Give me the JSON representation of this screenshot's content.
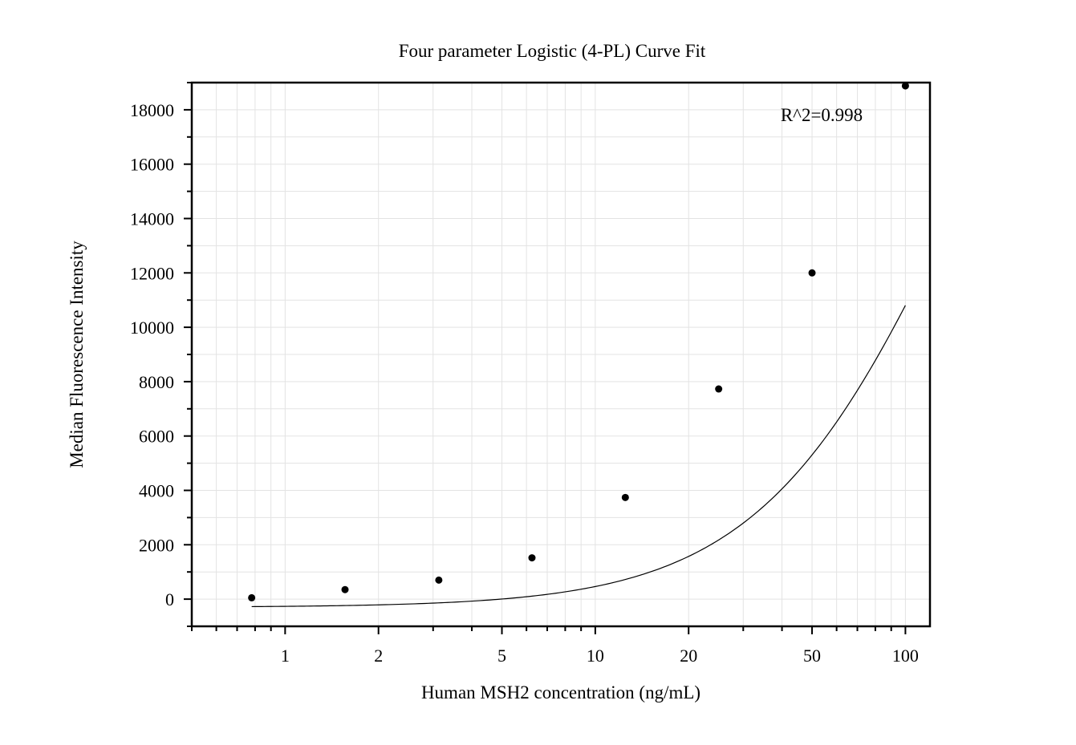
{
  "chart_data": {
    "type": "scatter",
    "title": "Four parameter Logistic (4-PL) Curve Fit",
    "xlabel": "Human MSH2 concentration (ng/mL)",
    "ylabel": "Median Fluorescence Intensity",
    "x_scale": "log",
    "xlim": [
      0.5,
      120
    ],
    "ylim": [
      -1000,
      19000
    ],
    "grid": true,
    "x_ticks": [
      1,
      2,
      5,
      10,
      20,
      50,
      100
    ],
    "x_tick_labels": [
      "1",
      "2",
      "5",
      "10",
      "20",
      "50",
      "100"
    ],
    "y_ticks": [
      0,
      2000,
      4000,
      6000,
      8000,
      10000,
      12000,
      14000,
      16000,
      18000
    ],
    "y_tick_labels": [
      "0",
      "2000",
      "4000",
      "6000",
      "8000",
      "10000",
      "12000",
      "14000",
      "16000",
      "18000"
    ],
    "annotation": "R^2=0.998",
    "series": [
      {
        "points": [
          {
            "x": 0.78,
            "y": 50
          },
          {
            "x": 1.56,
            "y": 350
          },
          {
            "x": 3.13,
            "y": 700
          },
          {
            "x": 6.25,
            "y": 1520
          },
          {
            "x": 12.5,
            "y": 3740
          },
          {
            "x": 25,
            "y": 7730
          },
          {
            "x": 50,
            "y": 12000
          },
          {
            "x": 100,
            "y": 18880
          }
        ],
        "color": "#000000"
      }
    ],
    "fit_curve": {
      "model": "4PL",
      "A": -300,
      "B": 1.35,
      "C": 150,
      "D": 30000,
      "color": "#000000"
    }
  }
}
